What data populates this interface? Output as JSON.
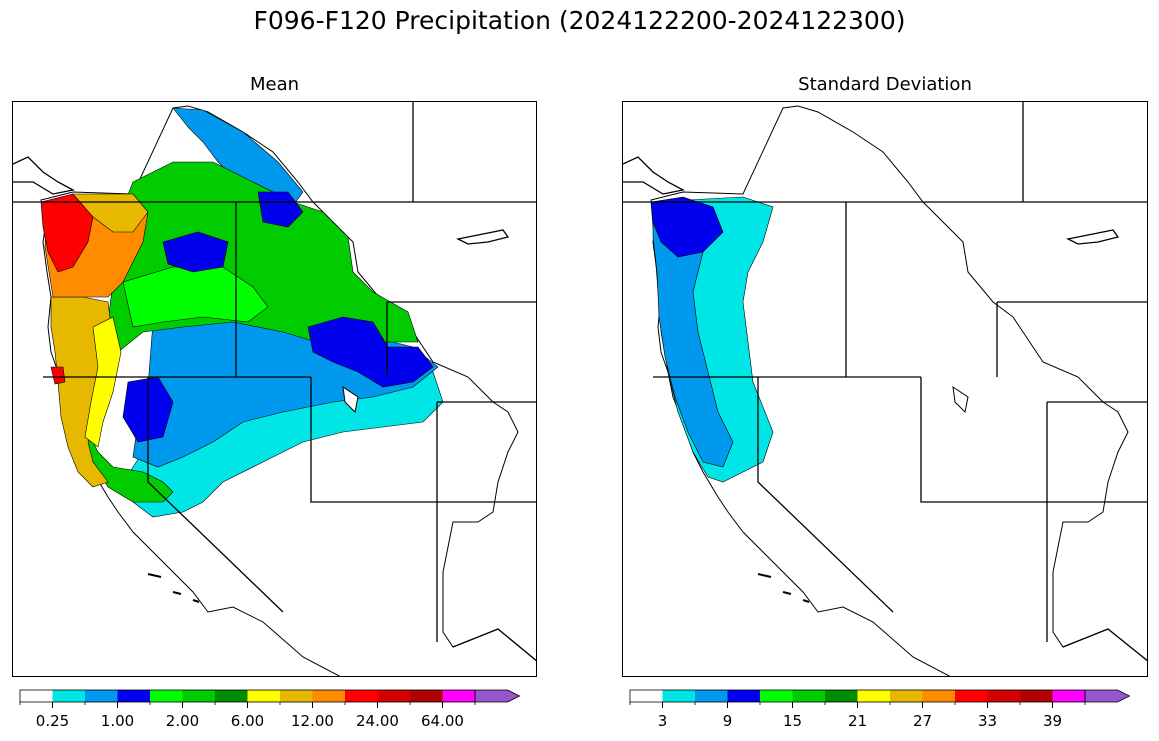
{
  "title": "F096-F120 Precipitation (2024122200-2024122300)",
  "panels": [
    {
      "title": "Mean",
      "colorbar": {
        "colors": [
          "#ffffff",
          "#00e5e5",
          "#0099ee",
          "#0000ee",
          "#00ff00",
          "#00cc00",
          "#008c00",
          "#ffff00",
          "#e6b800",
          "#ff8c00",
          "#ff0000",
          "#d40000",
          "#b00000",
          "#ff00ff",
          "#9955cc"
        ],
        "tick_labels": [
          "0.25",
          "1.00",
          "2.00",
          "6.00",
          "12.00",
          "24.00",
          "64.00"
        ],
        "extend": "max"
      }
    },
    {
      "title": "Standard Deviation",
      "colorbar": {
        "colors": [
          "#ffffff",
          "#00e5e5",
          "#0099ee",
          "#0000ee",
          "#00ff00",
          "#00cc00",
          "#008c00",
          "#ffff00",
          "#e6b800",
          "#ff8c00",
          "#ff0000",
          "#d40000",
          "#b00000",
          "#ff00ff",
          "#9955cc"
        ],
        "tick_labels": [
          "3",
          "9",
          "15",
          "21",
          "27",
          "33",
          "39"
        ],
        "extend": "max"
      }
    }
  ]
}
